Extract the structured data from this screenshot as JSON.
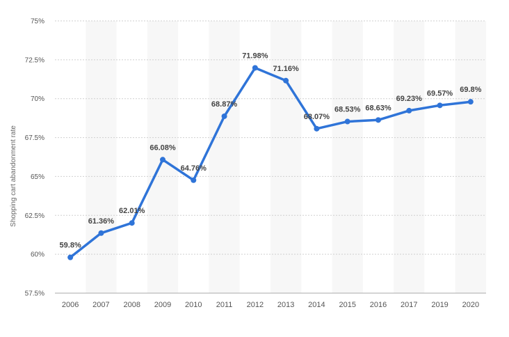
{
  "chart_data": {
    "type": "line",
    "title": "",
    "xlabel": "",
    "ylabel": "Shopping cart abandonment rate",
    "ylim": [
      57.5,
      75
    ],
    "yticks": [
      57.5,
      60,
      62.5,
      65,
      67.5,
      70,
      72.5,
      75
    ],
    "ytick_labels": [
      "57.5%",
      "60%",
      "62.5%",
      "65%",
      "67.5%",
      "70%",
      "72.5%",
      "75%"
    ],
    "grid": true,
    "legend": "none",
    "categories": [
      "2006",
      "2007",
      "2008",
      "2009",
      "2010",
      "2011",
      "2012",
      "2013",
      "2014",
      "2015",
      "2016",
      "2017",
      "2019",
      "2020"
    ],
    "series": [
      {
        "values": [
          59.8,
          61.36,
          62.01,
          66.08,
          64.76,
          68.87,
          71.98,
          71.16,
          68.07,
          68.53,
          68.63,
          69.23,
          69.57,
          69.8
        ],
        "data_labels": [
          "59.8%",
          "61.36%",
          "62.01%",
          "66.08%",
          "64.76%",
          "68.87%",
          "71.98%",
          "71.16%",
          "68.07%",
          "68.53%",
          "68.63%",
          "69.23%",
          "69.57%",
          "69.8%"
        ]
      }
    ],
    "colors": {
      "line": "#2f74d8",
      "grid": "#cfcfcf",
      "band": "#f7f7f7",
      "axis": "#aaaaaa"
    }
  }
}
